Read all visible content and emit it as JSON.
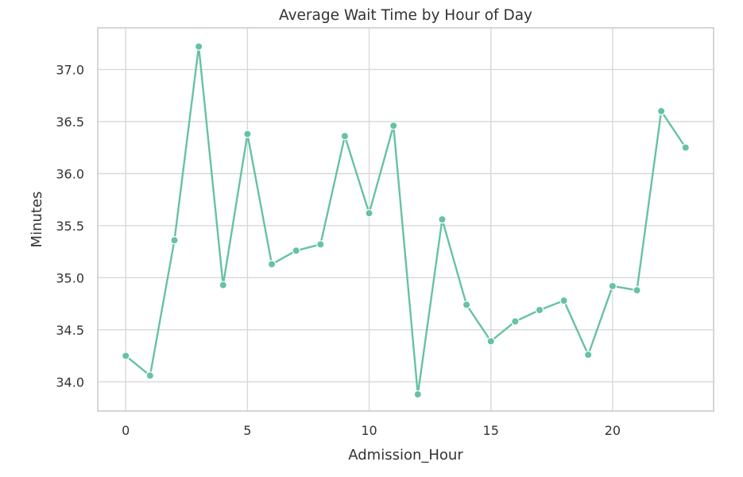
{
  "chart_data": {
    "type": "line",
    "title": "Average Wait Time by Hour of Day",
    "xlabel": "Admission_Hour",
    "ylabel": "Minutes",
    "xlim": [
      -1.15,
      24.15
    ],
    "ylim": [
      33.72,
      37.4
    ],
    "grid": true,
    "x_ticks": [
      0,
      5,
      10,
      15,
      20
    ],
    "y_ticks": [
      34.0,
      34.5,
      35.0,
      35.5,
      36.0,
      36.5,
      37.0
    ],
    "x_tick_labels": [
      "0",
      "5",
      "10",
      "15",
      "20"
    ],
    "y_tick_labels": [
      "34.0",
      "34.5",
      "35.0",
      "35.5",
      "36.0",
      "36.5",
      "37.0"
    ],
    "series": [
      {
        "color": "#66c2a5",
        "marker": "circle",
        "x": [
          0,
          1,
          2,
          3,
          4,
          5,
          6,
          7,
          8,
          9,
          10,
          11,
          12,
          13,
          14,
          15,
          16,
          17,
          18,
          19,
          20,
          21,
          22,
          23
        ],
        "values": [
          34.25,
          34.06,
          35.36,
          37.22,
          34.93,
          36.38,
          35.13,
          35.26,
          35.32,
          36.36,
          35.62,
          36.46,
          33.88,
          35.56,
          34.74,
          34.39,
          34.58,
          34.69,
          34.78,
          34.26,
          34.92,
          34.88,
          36.6,
          36.25
        ]
      }
    ]
  }
}
